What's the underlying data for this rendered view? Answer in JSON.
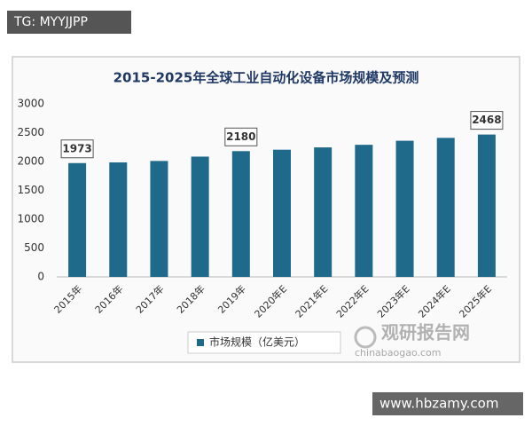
{
  "chart_data": {
    "type": "bar",
    "title": "2015-2025年全球工业自动化设备市场规模及预测",
    "categories": [
      "2015年",
      "2016年",
      "2017年",
      "2018年",
      "2019年",
      "2020年E",
      "2021年E",
      "2022年E",
      "2023年E",
      "2024年E",
      "2025年E"
    ],
    "series": [
      {
        "name": "市场规模（亿美元）",
        "color": "#1f6a8a",
        "values": [
          1973,
          1985,
          2010,
          2085,
          2180,
          2205,
          2245,
          2290,
          2360,
          2410,
          2468
        ],
        "value_labels": [
          "1973",
          null,
          null,
          null,
          "2180",
          null,
          null,
          null,
          null,
          null,
          "2468"
        ]
      }
    ],
    "ylim": [
      0,
      3000
    ],
    "yticks": [
      0,
      500,
      1000,
      1500,
      2000,
      2500,
      3000
    ],
    "grid": false,
    "legend": "bottom"
  },
  "watermarks": {
    "top": "TG: MYYJJPP",
    "bottom": "www.hbzamy.com",
    "logo": "观研报告网",
    "site": "chinabaogao.com"
  }
}
